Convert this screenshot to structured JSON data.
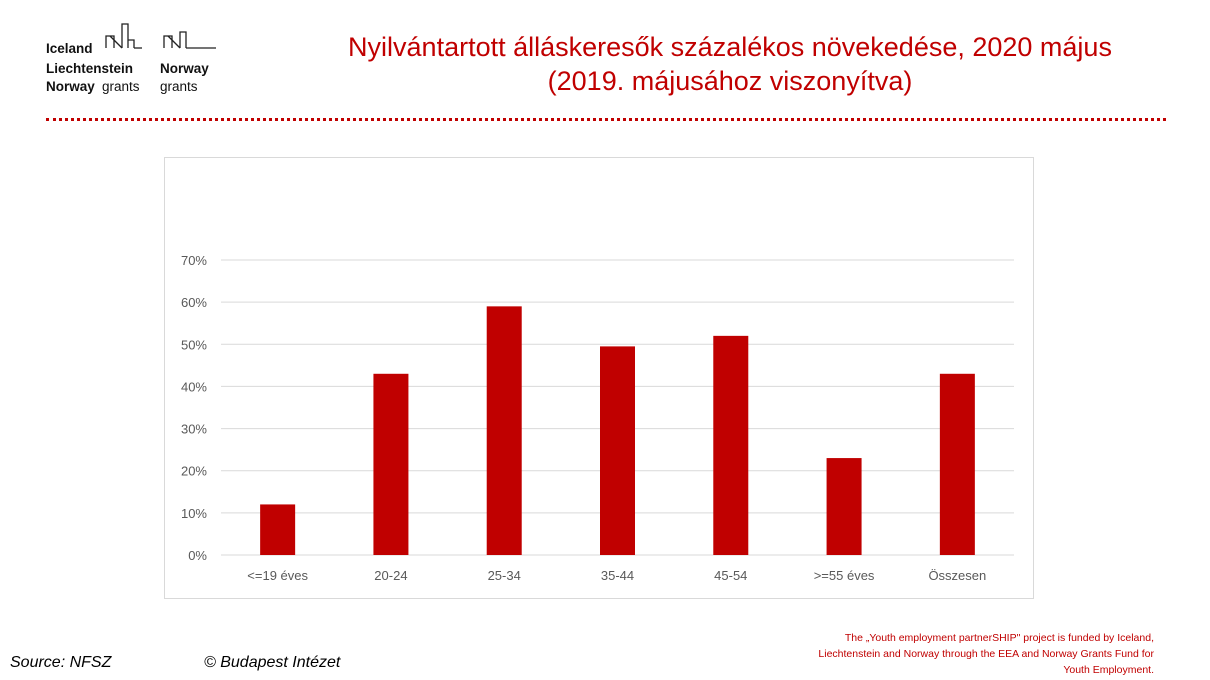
{
  "logo": {
    "line1": "Iceland",
    "line2a": "Liechtenstein",
    "line2b": "Norway",
    "line3a_bold": "Norway",
    "line3a_rest": "grants",
    "line3b": "grants"
  },
  "header": {
    "title_line1": "Nyilvántartott álláskeresők százalékos növekedése, 2020 május",
    "title_line2": "(2019. májusához viszonyítva)"
  },
  "footer": {
    "source": "Source: NFSZ",
    "copyright": "© Budapest Intézet",
    "funding_line1": "The „Youth employment partnerSHIP\" project is funded by Iceland,",
    "funding_line2": "Liechtenstein and Norway through the EEA and Norway Grants Fund for",
    "funding_line3": "Youth Employment."
  },
  "colors": {
    "bar": "#c00000",
    "title": "#c00000",
    "grid": "#d9d9d9",
    "axis_text": "#595959"
  },
  "chart_data": {
    "type": "bar",
    "categories": [
      "<=19 éves",
      "20-24",
      "25-34",
      "35-44",
      "45-54",
      ">=55 éves",
      "Összesen"
    ],
    "values": [
      12,
      43,
      59,
      49.5,
      52,
      23,
      43
    ],
    "ylim": [
      0,
      70
    ],
    "yticks": [
      "0%",
      "10%",
      "20%",
      "30%",
      "40%",
      "50%",
      "60%",
      "70%"
    ],
    "ytick_values": [
      0,
      10,
      20,
      30,
      40,
      50,
      60,
      70
    ],
    "title": "",
    "xlabel": "",
    "ylabel": "",
    "grid": true,
    "legend": "none"
  }
}
